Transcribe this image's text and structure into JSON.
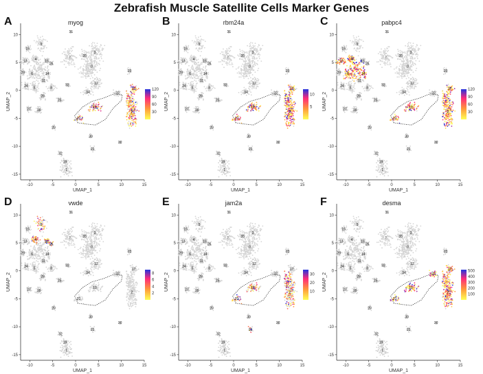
{
  "title": "Zebrafish Muscle Satellite Cells Marker Genes",
  "colors": {
    "gray": "#d4d4d4",
    "low": "#ffff55",
    "mid1": "#ff9a3a",
    "mid2": "#ff2a7a",
    "high": "#2233dd"
  },
  "chart_data": [
    {
      "type": "scatter",
      "panel": "A",
      "gene": "myog",
      "xlabel": "UMAP_1",
      "ylabel": "UMAP_2",
      "xlim": [
        -12,
        15
      ],
      "ylim": [
        -16,
        12
      ],
      "xticks": [
        -10,
        -5,
        0,
        5,
        10,
        15
      ],
      "yticks": [
        -15,
        -10,
        -5,
        0,
        5,
        10
      ],
      "legend_max": 120,
      "legend_ticks": [
        120,
        90,
        60,
        30
      ],
      "expression": {
        "clusters": [
          "2",
          "17",
          "10",
          "22"
        ],
        "level": 0.35
      }
    },
    {
      "type": "scatter",
      "panel": "B",
      "gene": "rbm24a",
      "xlabel": "UMAP_1",
      "ylabel": "UMAP_2",
      "xlim": [
        -12,
        15
      ],
      "ylim": [
        -16,
        12
      ],
      "xticks": [
        -10,
        -5,
        0,
        5,
        10,
        15
      ],
      "yticks": [
        -15,
        -10,
        -5,
        0,
        5,
        10
      ],
      "legend_max": 12,
      "legend_ticks": [
        10,
        5
      ],
      "expression": {
        "clusters": [
          "2",
          "17",
          "10",
          "22"
        ],
        "level": 0.6
      }
    },
    {
      "type": "scatter",
      "panel": "C",
      "gene": "pabpc4",
      "xlabel": "UMAP_1",
      "ylabel": "UMAP_2",
      "xlim": [
        -12,
        15
      ],
      "ylim": [
        -16,
        12
      ],
      "xticks": [
        -10,
        -5,
        0,
        5,
        10,
        15
      ],
      "yticks": [
        -15,
        -10,
        -5,
        0,
        5,
        10
      ],
      "legend_max": 120,
      "legend_ticks": [
        120,
        90,
        60,
        30
      ],
      "expression": {
        "clusters": [
          "2",
          "17",
          "10",
          "22",
          "6",
          "13",
          "4",
          "14"
        ],
        "level": 0.6
      }
    },
    {
      "type": "scatter",
      "panel": "D",
      "gene": "vwde",
      "xlabel": "UMAP_1",
      "ylabel": "UMAP_2",
      "xlim": [
        -12,
        15
      ],
      "ylim": [
        -16,
        12
      ],
      "xticks": [
        -10,
        -5,
        0,
        5,
        10,
        15
      ],
      "yticks": [
        -15,
        -10,
        -5,
        0,
        5,
        10
      ],
      "legend_max": 9,
      "legend_ticks": [
        8,
        6,
        4,
        2
      ],
      "expression": {
        "clusters": [
          "9",
          "16",
          "26",
          "4"
        ],
        "level": 0.3
      }
    },
    {
      "type": "scatter",
      "panel": "E",
      "gene": "jam2a",
      "xlabel": "UMAP_1",
      "ylabel": "UMAP_2",
      "xlim": [
        -12,
        15
      ],
      "ylim": [
        -16,
        12
      ],
      "xticks": [
        -10,
        -5,
        0,
        5,
        10,
        15
      ],
      "yticks": [
        -15,
        -10,
        -5,
        0,
        5,
        10
      ],
      "legend_max": 35,
      "legend_ticks": [
        30,
        20,
        10
      ],
      "expression": {
        "clusters": [
          "10",
          "22",
          "21",
          "2"
        ],
        "level": 0.25
      }
    },
    {
      "type": "scatter",
      "panel": "F",
      "gene": "desma",
      "xlabel": "UMAP_1",
      "ylabel": "UMAP_2",
      "xlim": [
        -12,
        15
      ],
      "ylim": [
        -16,
        12
      ],
      "xticks": [
        -10,
        -5,
        0,
        5,
        10,
        15
      ],
      "yticks": [
        -15,
        -10,
        -5,
        0,
        5,
        10
      ],
      "legend_max": 520,
      "legend_ticks": [
        500,
        400,
        300,
        200,
        100
      ],
      "expression": {
        "clusters": [
          "2",
          "17",
          "37",
          "10",
          "22"
        ],
        "level": 0.55
      }
    }
  ],
  "clusters": [
    {
      "id": "31",
      "x": -1.0,
      "y": 10.5
    },
    {
      "id": "9",
      "x": -7.5,
      "y": 8.3
    },
    {
      "id": "15",
      "x": -10.5,
      "y": 7.5
    },
    {
      "id": "7",
      "x": -1.3,
      "y": 5.9
    },
    {
      "id": "35",
      "x": 2.0,
      "y": 6.2
    },
    {
      "id": "3",
      "x": 4.2,
      "y": 6.8
    },
    {
      "id": "0",
      "x": 3.5,
      "y": 4.3
    },
    {
      "id": "13",
      "x": -11.0,
      "y": 5.3
    },
    {
      "id": "4",
      "x": -8.7,
      "y": 5.6
    },
    {
      "id": "16",
      "x": -6.3,
      "y": 5.3
    },
    {
      "id": "26",
      "x": -5.3,
      "y": 4.8
    },
    {
      "id": "29",
      "x": -11.5,
      "y": 3.2
    },
    {
      "id": "6",
      "x": -9.5,
      "y": 3.0
    },
    {
      "id": "14",
      "x": -6.2,
      "y": 3.0
    },
    {
      "id": "23",
      "x": 11.8,
      "y": 3.5
    },
    {
      "id": "11",
      "x": -7.0,
      "y": 1.8
    },
    {
      "id": "12",
      "x": 4.5,
      "y": 1.3
    },
    {
      "id": "24",
      "x": -10.8,
      "y": 0.8
    },
    {
      "id": "5",
      "x": -9.0,
      "y": 0.5
    },
    {
      "id": "8",
      "x": -5.3,
      "y": 0.5
    },
    {
      "id": "33",
      "x": -1.8,
      "y": 1.0
    },
    {
      "id": "34",
      "x": 2.7,
      "y": -0.3
    },
    {
      "id": "28",
      "x": -7.2,
      "y": -1.0
    },
    {
      "id": "25",
      "x": -3.5,
      "y": -1.7
    },
    {
      "id": "37",
      "x": 9.2,
      "y": -0.5
    },
    {
      "id": "17",
      "x": 12.7,
      "y": 0.3
    },
    {
      "id": "27",
      "x": -10.2,
      "y": -3.3
    },
    {
      "id": "18",
      "x": -8.0,
      "y": -3.5
    },
    {
      "id": "10",
      "x": 4.2,
      "y": -3.0
    },
    {
      "id": "2",
      "x": 12.3,
      "y": -3.8
    },
    {
      "id": "22",
      "x": 0.7,
      "y": -5.0
    },
    {
      "id": "20",
      "x": -4.8,
      "y": -6.6
    },
    {
      "id": "30",
      "x": 3.3,
      "y": -8.2
    },
    {
      "id": "36",
      "x": 9.7,
      "y": -9.3
    },
    {
      "id": "21",
      "x": 3.7,
      "y": -10.5
    },
    {
      "id": "32",
      "x": -3.3,
      "y": -11.3
    },
    {
      "id": "19",
      "x": -2.3,
      "y": -12.8
    },
    {
      "id": "1",
      "x": -2.0,
      "y": -14.2
    }
  ]
}
